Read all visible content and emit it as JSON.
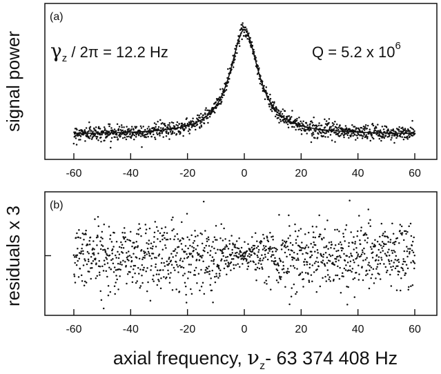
{
  "chart_data": [
    {
      "panel_label": "(a)",
      "type": "scatter",
      "ylabel": "signal power",
      "xlim": [
        -60,
        60
      ],
      "x_ticks": [
        -60,
        -40,
        -20,
        0,
        20,
        40,
        60
      ],
      "ylim": [
        -0.12,
        1.1
      ],
      "annotations": {
        "gamma_symbol": "γ",
        "gamma_sub": "z",
        "gamma_rest": " / 2π = 12.2 Hz",
        "q_text": "Q = 5.2 x 10",
        "q_exp": "6"
      },
      "fit_model": "lorentzian",
      "fit": {
        "center": 0.0,
        "fwhm": 12.2,
        "amplitude": 1.0,
        "baseline": 0.0
      },
      "point_count": 1200,
      "noise_sd": 0.035
    },
    {
      "panel_label": "(b)",
      "type": "scatter",
      "ylabel": "residuals x 3",
      "xlim": [
        -60,
        60
      ],
      "x_ticks": [
        -60,
        -40,
        -20,
        0,
        20,
        40,
        60
      ],
      "ylim": [
        -1.0,
        1.0
      ],
      "zero_line": true,
      "point_count": 1200,
      "noise_sd": 0.3
    }
  ],
  "xlabel": {
    "before": "axial frequency, ",
    "nu": "ν",
    "nu_sub": "z",
    "after": "- 63 374 408 Hz"
  }
}
